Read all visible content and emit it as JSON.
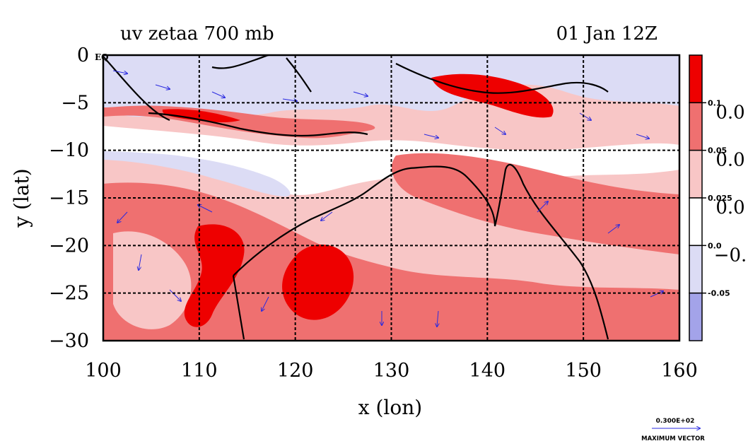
{
  "chart_data": {
    "type": "heatmap",
    "title_left": "uv zetaa 700 mb",
    "title_right": "01 Jan 12Z",
    "xlabel": "x (lon)",
    "ylabel": "y (lat)",
    "xlim": [
      100,
      160
    ],
    "ylim": [
      -30,
      0
    ],
    "x_ticks": [
      "100",
      "110",
      "120",
      "130",
      "140",
      "150",
      "160"
    ],
    "y_ticks": [
      "0",
      "−5",
      "−10",
      "−15",
      "−20",
      "−25",
      "−30"
    ],
    "eq_label": "EQ",
    "grid": true,
    "colorbar": {
      "colors": [
        "#ee0000",
        "#ef7070",
        "#f8c6c6",
        "#ffffff",
        "#dcdcf5",
        "#a3a3e9"
      ],
      "small_labels": [
        "0.1",
        "0.05",
        "0.025",
        "0.0",
        "-0.05"
      ],
      "large_labels": [
        "0.0",
        "0.0",
        "0.0",
        "−0."
      ]
    },
    "vector_key": {
      "value": "0.300E+02",
      "label": "MAXIMUM VECTOR"
    }
  }
}
